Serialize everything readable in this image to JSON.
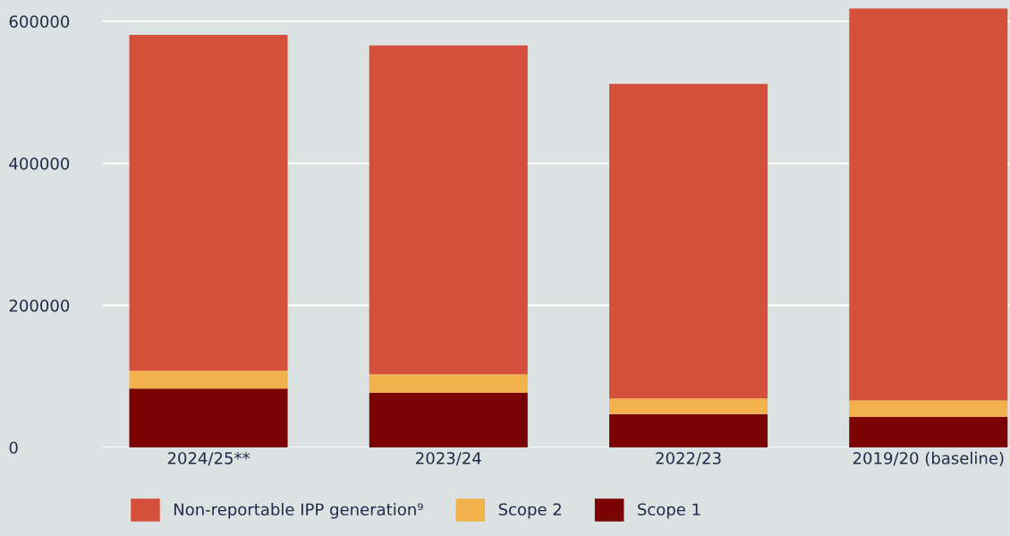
{
  "chart_data": {
    "type": "bar",
    "stacked": true,
    "categories": [
      "2024/25**",
      "2023/24",
      "2022/23",
      "2019/20 (baseline)"
    ],
    "series": [
      {
        "name": "Scope 1",
        "color": "#7a0403",
        "values": [
          83000,
          77000,
          47000,
          43000
        ]
      },
      {
        "name": "Scope 2",
        "color": "#f2b14a",
        "values": [
          25000,
          26000,
          22000,
          23000
        ]
      },
      {
        "name": "Non-reportable IPP generation⁹",
        "color": "#d4503a",
        "values": [
          473000,
          463000,
          443000,
          552000
        ]
      }
    ],
    "ylim": [
      0,
      630000
    ],
    "yticks": [
      0,
      200000,
      400000,
      600000
    ],
    "grid": "y",
    "legend": "bottom left"
  }
}
